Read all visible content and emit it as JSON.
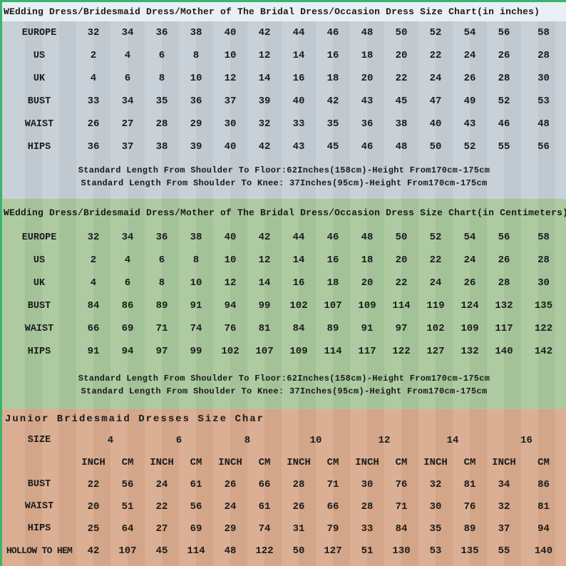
{
  "colors": {
    "border_green": "#3cb371",
    "inches_title_bg": "#e9eff4",
    "inches_table_bg": "#c5ced6",
    "cm_section_bg": "#a9c79c",
    "junior_section_bg": "#d9aa8d",
    "text": "#1b1b1b"
  },
  "chart_data": [
    {
      "type": "table",
      "title": "WEdding Dress/Bridesmaid Dress/Mother of The Bridal Dress/Occasion Dress Size Chart(in inches)",
      "rows": [
        {
          "label": "EUROPE",
          "values": [
            "32",
            "34",
            "36",
            "38",
            "40",
            "42",
            "44",
            "46",
            "48",
            "50",
            "52",
            "54",
            "56",
            "58"
          ]
        },
        {
          "label": "US",
          "values": [
            "2",
            "4",
            "6",
            "8",
            "10",
            "12",
            "14",
            "16",
            "18",
            "20",
            "22",
            "24",
            "26",
            "28"
          ]
        },
        {
          "label": "UK",
          "values": [
            "4",
            "6",
            "8",
            "10",
            "12",
            "14",
            "16",
            "18",
            "20",
            "22",
            "24",
            "26",
            "28",
            "30"
          ]
        },
        {
          "label": "BUST",
          "values": [
            "33",
            "34",
            "35",
            "36",
            "37",
            "39",
            "40",
            "42",
            "43",
            "45",
            "47",
            "49",
            "52",
            "53"
          ]
        },
        {
          "label": "WAIST",
          "values": [
            "26",
            "27",
            "28",
            "29",
            "30",
            "32",
            "33",
            "35",
            "36",
            "38",
            "40",
            "43",
            "46",
            "48"
          ]
        },
        {
          "label": "HIPS",
          "values": [
            "36",
            "37",
            "38",
            "39",
            "40",
            "42",
            "43",
            "45",
            "46",
            "48",
            "50",
            "52",
            "55",
            "56"
          ]
        }
      ],
      "notes": [
        "Standard Length From Shoulder To Floor:62Inches(158cm)-Height From170cm-175cm",
        "Standard Length From Shoulder To Knee: 37Inches(95cm)-Height From170cm-175cm"
      ]
    },
    {
      "type": "table",
      "title": "WEdding Dress/Bridesmaid Dress/Mother of The Bridal Dress/Occasion Dress Size Chart(in Centimeters)",
      "rows": [
        {
          "label": "EUROPE",
          "values": [
            "32",
            "34",
            "36",
            "38",
            "40",
            "42",
            "44",
            "46",
            "48",
            "50",
            "52",
            "54",
            "56",
            "58"
          ]
        },
        {
          "label": "US",
          "values": [
            "2",
            "4",
            "6",
            "8",
            "10",
            "12",
            "14",
            "16",
            "18",
            "20",
            "22",
            "24",
            "26",
            "28"
          ]
        },
        {
          "label": "UK",
          "values": [
            "4",
            "6",
            "8",
            "10",
            "12",
            "14",
            "16",
            "18",
            "20",
            "22",
            "24",
            "26",
            "28",
            "30"
          ]
        },
        {
          "label": "BUST",
          "values": [
            "84",
            "86",
            "89",
            "91",
            "94",
            "99",
            "102",
            "107",
            "109",
            "114",
            "119",
            "124",
            "132",
            "135"
          ]
        },
        {
          "label": "WAIST",
          "values": [
            "66",
            "69",
            "71",
            "74",
            "76",
            "81",
            "84",
            "89",
            "91",
            "97",
            "102",
            "109",
            "117",
            "122"
          ]
        },
        {
          "label": "HIPS",
          "values": [
            "91",
            "94",
            "97",
            "99",
            "102",
            "107",
            "109",
            "114",
            "117",
            "122",
            "127",
            "132",
            "140",
            "142"
          ]
        }
      ],
      "notes": [
        "Standard Length From Shoulder To Floor:62Inches(158cm)-Height From170cm-175cm",
        "Standard Length From Shoulder To Knee: 37Inches(95cm)-Height From170cm-175cm"
      ]
    },
    {
      "type": "table",
      "title": "Junior Bridesmaid Dresses Size Char",
      "size_header": {
        "label": "SIZE",
        "sizes": [
          "4",
          "6",
          "8",
          "10",
          "12",
          "14",
          "16"
        ]
      },
      "unit_headers": [
        "INCH",
        "CM",
        "INCH",
        "CM",
        "INCH",
        "CM",
        "INCH",
        "CM",
        "INCH",
        "CM",
        "INCH",
        "CM",
        "INCH",
        "CM"
      ],
      "rows": [
        {
          "label": "BUST",
          "values": [
            "22",
            "56",
            "24",
            "61",
            "26",
            "66",
            "28",
            "71",
            "30",
            "76",
            "32",
            "81",
            "34",
            "86"
          ]
        },
        {
          "label": "WAIST",
          "values": [
            "20",
            "51",
            "22",
            "56",
            "24",
            "61",
            "26",
            "66",
            "28",
            "71",
            "30",
            "76",
            "32",
            "81"
          ]
        },
        {
          "label": "HIPS",
          "values": [
            "25",
            "64",
            "27",
            "69",
            "29",
            "74",
            "31",
            "79",
            "33",
            "84",
            "35",
            "89",
            "37",
            "94"
          ]
        },
        {
          "label": "HOLLOW TO HEM",
          "values": [
            "42",
            "107",
            "45",
            "114",
            "48",
            "122",
            "50",
            "127",
            "51",
            "130",
            "53",
            "135",
            "55",
            "140"
          ]
        }
      ]
    }
  ]
}
